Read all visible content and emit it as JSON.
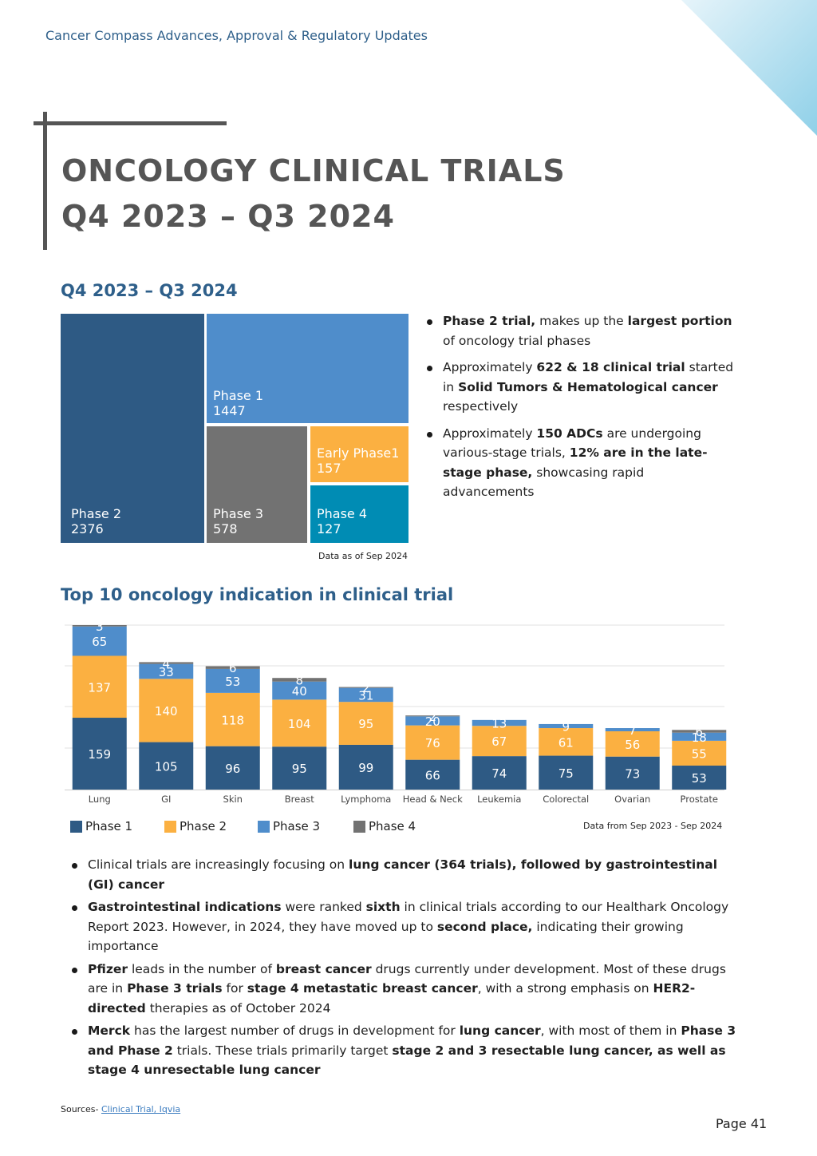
{
  "header": {
    "text": "Cancer Compass Advances, Approval & Regulatory Updates"
  },
  "title": {
    "line1": "ONCOLOGY CLINICAL TRIALS",
    "line2": "Q4 2023 – Q3 2024"
  },
  "treemap": {
    "heading": "Q4 2023 – Q3 2024",
    "cells": {
      "phase2": {
        "label": "Phase 2",
        "value": "2376"
      },
      "phase1": {
        "label": "Phase 1",
        "value": "1447"
      },
      "phase3": {
        "label": "Phase 3",
        "value": "578"
      },
      "early_phase1": {
        "label": "Early Phase1",
        "value": "157"
      },
      "phase4": {
        "label": "Phase 4",
        "value": "127"
      }
    },
    "note": "Data as of Sep 2024"
  },
  "summary_bullets": [
    {
      "b1": "Phase 2 trial,",
      "t1": " makes up the ",
      "b2": "largest portion",
      "t2": " of oncology trial phases"
    },
    {
      "t0": "Approximately ",
      "b1": "622 & 18 clinical trial",
      "t1": " started in ",
      "b2": "Solid Tumors & Hematological cancer",
      "t2": " respectively"
    },
    {
      "t0": "Approximately ",
      "b1": "150 ADCs",
      "t1": " are undergoing various-stage trials, ",
      "b2": "12% are in the late-stage phase,",
      "t2": " showcasing rapid advancements"
    }
  ],
  "indication_heading": "Top 10 oncology indication in clinical trial",
  "chart_data": {
    "type": "bar",
    "stacked": true,
    "categories": [
      "Lung",
      "GI",
      "Skin",
      "Breast",
      "Lymphoma",
      "Head & Neck",
      "Leukemia",
      "Colorectal",
      "Ovarian",
      "Prostate"
    ],
    "series": [
      {
        "name": "Phase 1",
        "color": "#2e5a84",
        "values": [
          159,
          105,
          96,
          95,
          99,
          66,
          74,
          75,
          73,
          53
        ]
      },
      {
        "name": "Phase 2",
        "color": "#fbb041",
        "values": [
          137,
          140,
          118,
          104,
          95,
          76,
          67,
          61,
          56,
          55
        ]
      },
      {
        "name": "Phase 3",
        "color": "#4f8dcb",
        "values": [
          65,
          33,
          53,
          40,
          31,
          20,
          13,
          9,
          7,
          18
        ]
      },
      {
        "name": "Phase 4",
        "color": "#727272",
        "values": [
          3,
          4,
          6,
          8,
          2,
          2,
          0,
          0,
          0,
          6
        ]
      }
    ],
    "gridlines": true,
    "legend": "bottom-left",
    "note": "Data from Sep 2023 - Sep 2024"
  },
  "detail_bullets": [
    {
      "t0": "Clinical trials are increasingly focusing on ",
      "b1": "lung cancer (364 trials), followed by gastrointestinal (GI) cancer"
    },
    {
      "b0": "Gastrointestinal indications",
      "t1": " were ranked ",
      "b1": "sixth",
      "t2": " in clinical trials according to our Healthark Oncology Report 2023. However, in 2024, they have moved up to ",
      "b2": "second place,",
      "t3": " indicating their growing importance"
    },
    {
      "b0": "Pfizer",
      "t1": " leads in the number of ",
      "b1": "breast cancer",
      "t2": " drugs currently under development. Most of these drugs are in ",
      "b2": "Phase 3 trials",
      "t3": " for ",
      "b3": "stage 4 metastatic breast cancer",
      "t4": ", with a strong emphasis on ",
      "b4": "HER2-directed",
      "t5": " therapies as of October 2024"
    },
    {
      "b0": "Merck",
      "t1": " has the largest number of drugs in development for ",
      "b1": "lung cancer",
      "t2": ", with most of them in ",
      "b2": "Phase 3 and Phase 2",
      "t3": " trials. These trials primarily target ",
      "b3": "stage 2 and 3 resectable lung cancer, as well as stage 4 unresectable lung cancer"
    }
  ],
  "footer": {
    "sources_label": "Sources- ",
    "sources_link": "Clinical Trial, Iqvia ",
    "page": "Page 41"
  }
}
